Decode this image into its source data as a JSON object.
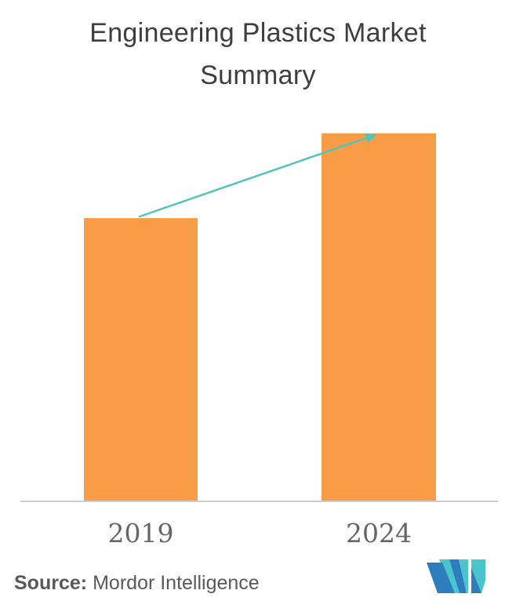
{
  "title": "Engineering Plastics Market Summary",
  "chart_data": {
    "type": "bar",
    "title": "Engineering Plastics Market Summary",
    "categories": [
      "2019",
      "2024"
    ],
    "values": [
      77,
      100
    ],
    "values_note": "No numeric axis is shown; values are relative bar heights (2019 bar is ~77% of the 2024 bar).",
    "xlabel": "",
    "ylabel": "",
    "legend": "none",
    "grid": "off",
    "bar_color": "#F99C46",
    "axis_line_color": "#CDCDCD",
    "tick_label_color": "#666666",
    "title_color": "#3E3E3E",
    "annotations": [
      {
        "type": "trend-arrow",
        "from": "top center of 2019 bar",
        "to": "top center of 2024 bar",
        "color": "#53C3BC",
        "meaning": "growth from 2019 to 2024"
      }
    ]
  },
  "source": {
    "label": "Source:",
    "text": "Mordor Intelligence",
    "color": "#58595B"
  },
  "logo": {
    "name": "Mordor Intelligence logo mark",
    "teal": "#4BC5CD",
    "blue": "#2E7EBE"
  }
}
